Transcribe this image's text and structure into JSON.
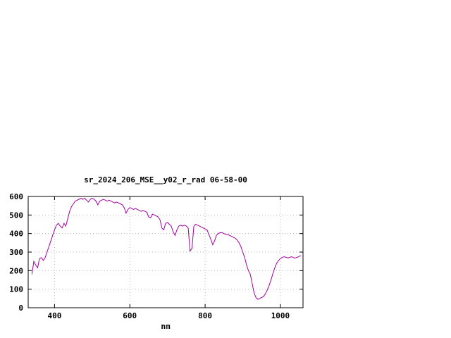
{
  "page": {
    "background": "#ffffff"
  },
  "chart_data": {
    "type": "line",
    "title": "sr_2024_206_MSE__y02_r_rad 06-58-00",
    "xlabel": "nm",
    "ylabel": "",
    "xlim": [
      330,
      1060
    ],
    "ylim": [
      0,
      600
    ],
    "xticks": [
      400,
      600,
      800,
      1000
    ],
    "yticks": [
      0,
      100,
      200,
      300,
      400,
      500,
      600
    ],
    "grid": true,
    "legend": false,
    "series": [
      {
        "name": "sr_2024_206_MSE__y02_r_rad",
        "color": "#a000a0",
        "x": [
          340,
          345,
          350,
          355,
          360,
          365,
          370,
          375,
          380,
          385,
          390,
          395,
          400,
          405,
          410,
          415,
          420,
          425,
          430,
          435,
          440,
          445,
          450,
          455,
          460,
          465,
          470,
          475,
          480,
          485,
          490,
          495,
          500,
          505,
          510,
          515,
          520,
          525,
          530,
          535,
          540,
          545,
          550,
          555,
          560,
          565,
          570,
          575,
          580,
          585,
          590,
          595,
          600,
          605,
          610,
          615,
          620,
          625,
          630,
          635,
          640,
          645,
          650,
          655,
          660,
          665,
          670,
          675,
          680,
          685,
          690,
          695,
          700,
          705,
          710,
          715,
          720,
          725,
          730,
          735,
          740,
          745,
          750,
          755,
          760,
          765,
          770,
          775,
          780,
          785,
          790,
          795,
          800,
          805,
          810,
          815,
          820,
          825,
          830,
          835,
          840,
          845,
          850,
          855,
          860,
          865,
          870,
          875,
          880,
          885,
          890,
          895,
          900,
          905,
          910,
          915,
          920,
          925,
          930,
          935,
          940,
          945,
          950,
          955,
          960,
          965,
          970,
          975,
          980,
          985,
          990,
          995,
          1000,
          1005,
          1010,
          1015,
          1020,
          1025,
          1030,
          1035,
          1040,
          1045,
          1050,
          1055
        ],
        "y": [
          180,
          250,
          230,
          215,
          265,
          270,
          255,
          270,
          300,
          330,
          360,
          390,
          420,
          445,
          455,
          440,
          430,
          455,
          440,
          480,
          520,
          545,
          560,
          575,
          580,
          585,
          590,
          585,
          590,
          580,
          570,
          585,
          590,
          585,
          575,
          555,
          575,
          580,
          585,
          580,
          575,
          580,
          575,
          570,
          565,
          570,
          565,
          560,
          555,
          540,
          510,
          530,
          540,
          535,
          530,
          535,
          530,
          525,
          520,
          525,
          520,
          515,
          490,
          485,
          505,
          500,
          495,
          490,
          475,
          430,
          420,
          455,
          460,
          450,
          440,
          410,
          390,
          420,
          440,
          445,
          440,
          445,
          440,
          430,
          305,
          320,
          440,
          450,
          445,
          440,
          435,
          430,
          425,
          420,
          395,
          370,
          340,
          360,
          390,
          400,
          405,
          405,
          400,
          395,
          395,
          390,
          385,
          380,
          375,
          365,
          350,
          330,
          300,
          270,
          230,
          200,
          180,
          130,
          80,
          55,
          45,
          50,
          55,
          60,
          75,
          95,
          120,
          150,
          185,
          215,
          240,
          255,
          265,
          272,
          275,
          272,
          268,
          272,
          275,
          270,
          268,
          272,
          278,
          280
        ]
      }
    ]
  }
}
